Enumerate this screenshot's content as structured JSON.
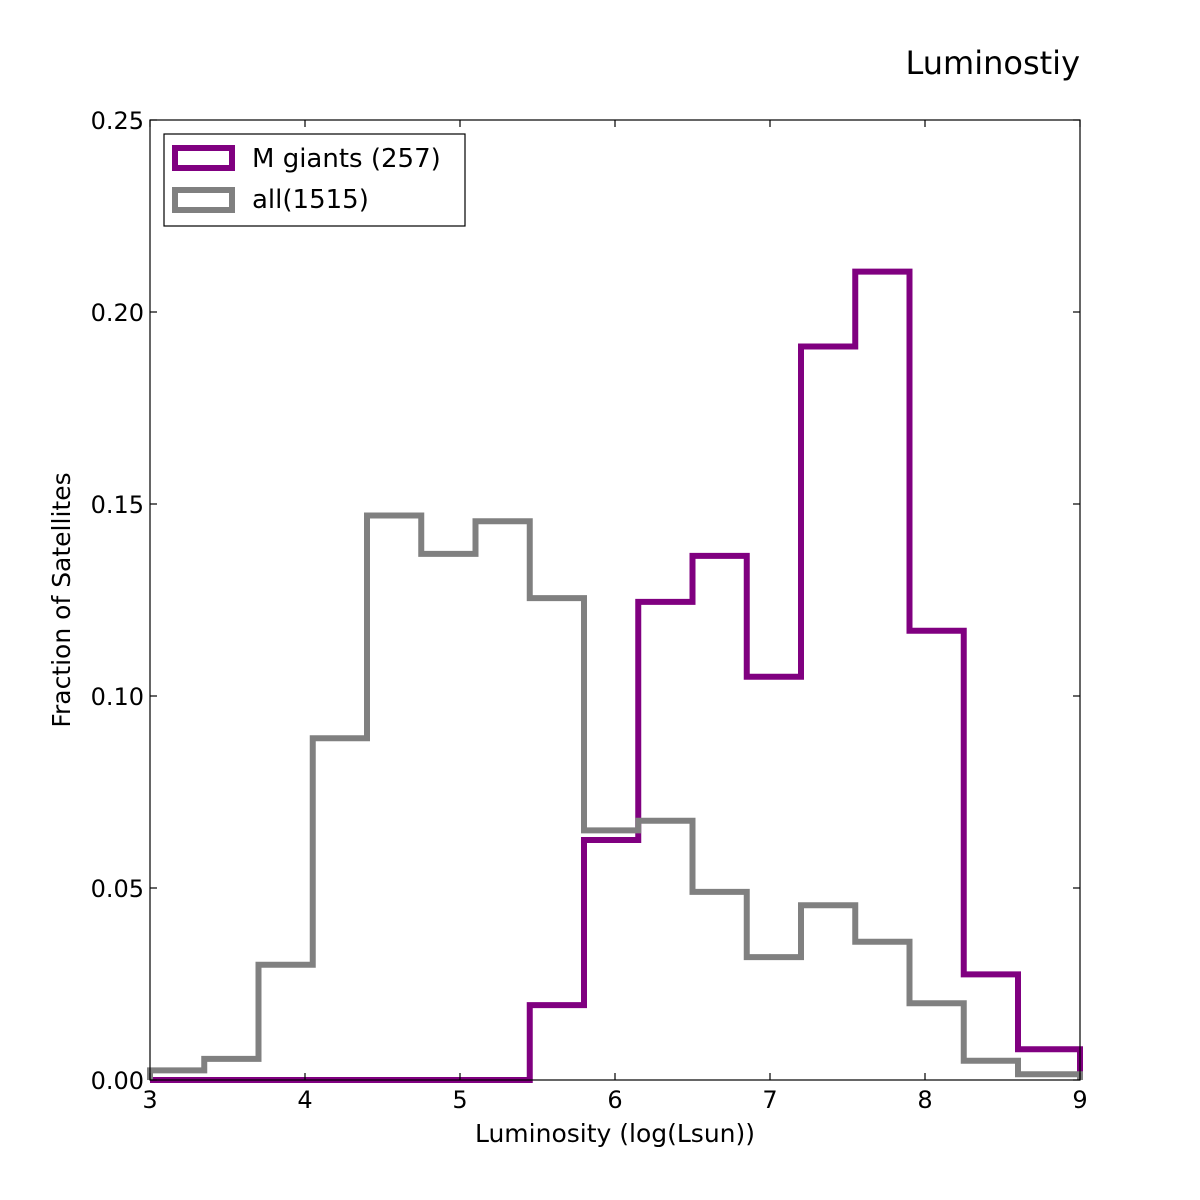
{
  "chart_data": {
    "type": "histogram-step",
    "title": "Luminostiy",
    "xlabel": "Luminosity (log(Lsun))",
    "ylabel": "Fraction of Satellites",
    "xlim": [
      3,
      9
    ],
    "ylim": [
      0,
      0.25
    ],
    "x_ticks": [
      "3",
      "4",
      "5",
      "6",
      "7",
      "8",
      "9"
    ],
    "y_ticks": [
      "0.00",
      "0.05",
      "0.10",
      "0.15",
      "0.20",
      "0.25"
    ],
    "bin_edges": [
      3.0,
      3.35,
      3.7,
      4.05,
      4.4,
      4.75,
      5.1,
      5.45,
      5.8,
      6.15,
      6.5,
      6.85,
      7.2,
      7.55,
      7.9,
      8.25,
      8.6,
      9.0
    ],
    "series": [
      {
        "name": "M giants (257)",
        "color": "#800080",
        "values": [
          0.0,
          0.0,
          0.0,
          0.0,
          0.0,
          0.0,
          0.0,
          0.0195,
          0.0625,
          0.1245,
          0.1365,
          0.105,
          0.191,
          0.2105,
          0.117,
          0.0275,
          0.008
        ]
      },
      {
        "name": "all(1515)",
        "color": "#808080",
        "values": [
          0.0025,
          0.0055,
          0.03,
          0.089,
          0.147,
          0.137,
          0.1455,
          0.1255,
          0.065,
          0.0675,
          0.049,
          0.032,
          0.0455,
          0.036,
          0.02,
          0.005,
          0.0015
        ]
      }
    ],
    "legend_position": "upper-left"
  }
}
